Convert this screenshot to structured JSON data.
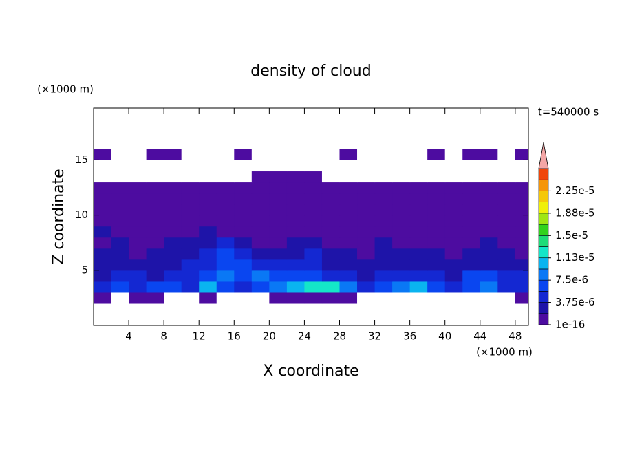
{
  "chart_data": {
    "type": "contour",
    "title": "density of cloud",
    "x_label": "X coordinate",
    "y_label": "Z coordinate",
    "x_unit": "(×1000 m)",
    "y_unit": "(×1000 m)",
    "annotation": "t=540000 s",
    "xlim": [
      0,
      49.5
    ],
    "ylim": [
      0,
      19.7
    ],
    "xticks": [
      4,
      8,
      12,
      16,
      20,
      24,
      28,
      32,
      36,
      40,
      44,
      48
    ],
    "yticks": [
      5,
      10,
      15
    ],
    "x": [
      1,
      3,
      5,
      7,
      9,
      11,
      13,
      15,
      17,
      19,
      21,
      23,
      25,
      27,
      29,
      31,
      33,
      35,
      37,
      39,
      41,
      43,
      45,
      47,
      49
    ],
    "y": [
      0.5,
      1.5,
      2.5,
      3.5,
      4.5,
      5.5,
      6.5,
      7.5,
      8.5,
      9.5,
      10.5,
      11.5,
      12.5,
      13.5,
      14.5,
      15.5,
      16.5,
      17.5,
      18.5,
      19.5
    ],
    "z": [
      [
        0,
        0,
        0,
        0,
        0,
        0,
        0,
        0,
        0,
        0,
        0,
        0,
        0,
        0,
        0,
        0,
        0,
        0,
        0,
        0,
        0,
        0,
        0,
        0,
        0
      ],
      [
        0,
        0,
        0,
        0,
        0,
        0,
        0,
        0,
        0,
        0,
        0,
        0,
        0,
        0,
        0,
        0,
        0,
        0,
        0,
        0,
        0,
        0,
        0,
        0,
        0
      ],
      [
        1e-16,
        0,
        1e-16,
        1e-16,
        0,
        0,
        1e-16,
        0,
        0,
        0,
        1e-16,
        1e-16,
        1e-16,
        1e-16,
        1e-16,
        0,
        0,
        0,
        0,
        0,
        0,
        0,
        0,
        0,
        1e-16
      ],
      [
        4e-06,
        6e-06,
        5e-06,
        7e-06,
        6e-06,
        5e-06,
        1e-05,
        6e-06,
        5e-06,
        7e-06,
        8e-06,
        1.1e-05,
        1.3e-05,
        1.3e-05,
        9e-06,
        4e-06,
        6e-06,
        8e-06,
        1e-05,
        6e-06,
        5e-06,
        7e-06,
        9e-06,
        4e-06,
        5e-06
      ],
      [
        3e-06,
        4e-06,
        4e-06,
        3e-06,
        4e-06,
        5e-06,
        6e-06,
        8e-06,
        7e-06,
        8e-06,
        7e-06,
        7e-06,
        6e-06,
        5e-06,
        5e-06,
        2e-06,
        4e-06,
        5e-06,
        5e-06,
        4e-06,
        3e-06,
        6e-06,
        7e-06,
        5e-06,
        4e-06
      ],
      [
        2e-06,
        2e-06,
        3e-06,
        2e-06,
        3e-06,
        4e-06,
        5e-06,
        6e-06,
        6e-06,
        5e-06,
        4e-06,
        4e-06,
        5e-06,
        3e-06,
        3e-06,
        2e-06,
        3e-06,
        2e-06,
        3e-06,
        2e-06,
        2e-06,
        3e-06,
        2e-06,
        3e-06,
        2e-06
      ],
      [
        3e-06,
        2e-06,
        1e-06,
        2e-06,
        3e-06,
        3e-06,
        5e-06,
        6e-06,
        4e-06,
        2e-06,
        2e-06,
        3e-06,
        4e-06,
        3e-06,
        2e-06,
        1e-06,
        2e-06,
        2e-06,
        3e-06,
        2e-06,
        1e-06,
        2e-06,
        3e-06,
        2e-06,
        1e-06
      ],
      [
        1e-06,
        2e-06,
        1e-06,
        1e-06,
        2e-06,
        2e-06,
        3e-06,
        4e-06,
        2e-06,
        1e-06,
        1e-06,
        2e-06,
        2e-06,
        1e-06,
        1e-06,
        1e-06,
        2e-06,
        1e-06,
        1e-06,
        1e-06,
        1e-06,
        1e-06,
        2e-06,
        1e-06,
        1e-06
      ],
      [
        2e-06,
        1e-06,
        1e-16,
        1e-06,
        1e-16,
        1e-06,
        2e-06,
        1e-06,
        1e-16,
        1e-16,
        1e-06,
        1e-16,
        1e-06,
        1e-16,
        1e-16,
        1e-06,
        1e-06,
        1e-16,
        1e-16,
        1e-06,
        1e-16,
        1e-16,
        1e-06,
        1e-16,
        1e-06
      ],
      [
        1e-16,
        1e-16,
        1e-16,
        1e-16,
        1e-16,
        1e-16,
        1e-16,
        1e-16,
        1e-16,
        1e-16,
        1e-16,
        1e-16,
        1e-16,
        1e-16,
        1e-16,
        1e-16,
        1e-16,
        1e-16,
        1e-16,
        1e-16,
        1e-16,
        1e-16,
        1e-16,
        1e-16,
        1e-16
      ],
      [
        1e-16,
        1e-16,
        1e-16,
        1e-16,
        1e-16,
        1e-16,
        1e-16,
        1e-16,
        1e-16,
        1e-16,
        1e-16,
        1e-16,
        1e-16,
        1e-16,
        1e-16,
        1e-16,
        1e-16,
        1e-16,
        1e-16,
        1e-16,
        1e-16,
        1e-16,
        1e-16,
        1e-16,
        1e-16
      ],
      [
        1e-16,
        1e-16,
        1e-16,
        1e-16,
        1e-16,
        1e-16,
        1e-16,
        1e-16,
        1e-16,
        1e-16,
        1e-16,
        1e-16,
        1e-16,
        1e-16,
        1e-16,
        1e-16,
        1e-16,
        1e-16,
        1e-16,
        1e-16,
        1e-16,
        1e-16,
        1e-16,
        1e-16,
        1e-16
      ],
      [
        1e-16,
        1e-16,
        1e-16,
        1e-16,
        1e-16,
        1e-16,
        1e-16,
        1e-16,
        1e-16,
        1e-16,
        1e-16,
        1e-16,
        1e-16,
        1e-16,
        1e-16,
        1e-16,
        1e-16,
        1e-16,
        1e-16,
        1e-16,
        1e-16,
        1e-16,
        1e-16,
        1e-16,
        1e-16
      ],
      [
        0,
        0,
        0,
        0,
        0,
        0,
        0,
        0,
        0,
        1e-16,
        1e-16,
        1e-16,
        1e-16,
        0,
        0,
        0,
        0,
        0,
        0,
        0,
        0,
        0,
        0,
        0,
        0
      ],
      [
        0,
        0,
        0,
        0,
        0,
        0,
        0,
        0,
        0,
        0,
        0,
        0,
        0,
        0,
        0,
        0,
        0,
        0,
        0,
        0,
        0,
        0,
        0,
        0,
        0
      ],
      [
        1e-16,
        0,
        0,
        1e-16,
        1e-16,
        0,
        0,
        0,
        1e-16,
        0,
        0,
        0,
        0,
        0,
        1e-16,
        0,
        0,
        0,
        0,
        1e-16,
        0,
        1e-16,
        1e-16,
        0,
        1e-16
      ],
      [
        0,
        0,
        0,
        0,
        0,
        0,
        0,
        0,
        0,
        0,
        0,
        0,
        0,
        0,
        0,
        0,
        0,
        0,
        0,
        0,
        0,
        0,
        0,
        0,
        0
      ],
      [
        0,
        0,
        0,
        0,
        0,
        0,
        0,
        0,
        0,
        0,
        0,
        0,
        0,
        0,
        0,
        0,
        0,
        0,
        0,
        0,
        0,
        0,
        0,
        0,
        0
      ],
      [
        0,
        0,
        0,
        0,
        0,
        0,
        0,
        0,
        0,
        0,
        0,
        0,
        0,
        0,
        0,
        0,
        0,
        0,
        0,
        0,
        0,
        0,
        0,
        0,
        0
      ],
      [
        0,
        0,
        0,
        0,
        0,
        0,
        0,
        0,
        0,
        0,
        0,
        0,
        0,
        0,
        0,
        0,
        0,
        0,
        0,
        0,
        0,
        0,
        0,
        0,
        0
      ]
    ],
    "colorbar": {
      "lim": [
        1e-16,
        2.625e-05
      ],
      "colors": [
        "#4d0ca0",
        "#1e14a8",
        "#1428d2",
        "#0a46f0",
        "#0a78f5",
        "#0ab4f0",
        "#14e6c8",
        "#1edc78",
        "#32d21e",
        "#a0e614",
        "#f0f00a",
        "#f5c80a",
        "#f5960a",
        "#f0460a"
      ],
      "extend_color": "#f4a6a6",
      "ticks": [
        {
          "value": 1e-16,
          "label": "1e-16"
        },
        {
          "value": 3.75e-06,
          "label": "3.75e-6"
        },
        {
          "value": 7.5e-06,
          "label": "7.5e-6"
        },
        {
          "value": 1.125e-05,
          "label": "1.13e-5"
        },
        {
          "value": 1.5e-05,
          "label": "1.5e-5"
        },
        {
          "value": 1.875e-05,
          "label": "1.88e-5"
        },
        {
          "value": 2.25e-05,
          "label": "2.25e-5"
        }
      ]
    }
  }
}
